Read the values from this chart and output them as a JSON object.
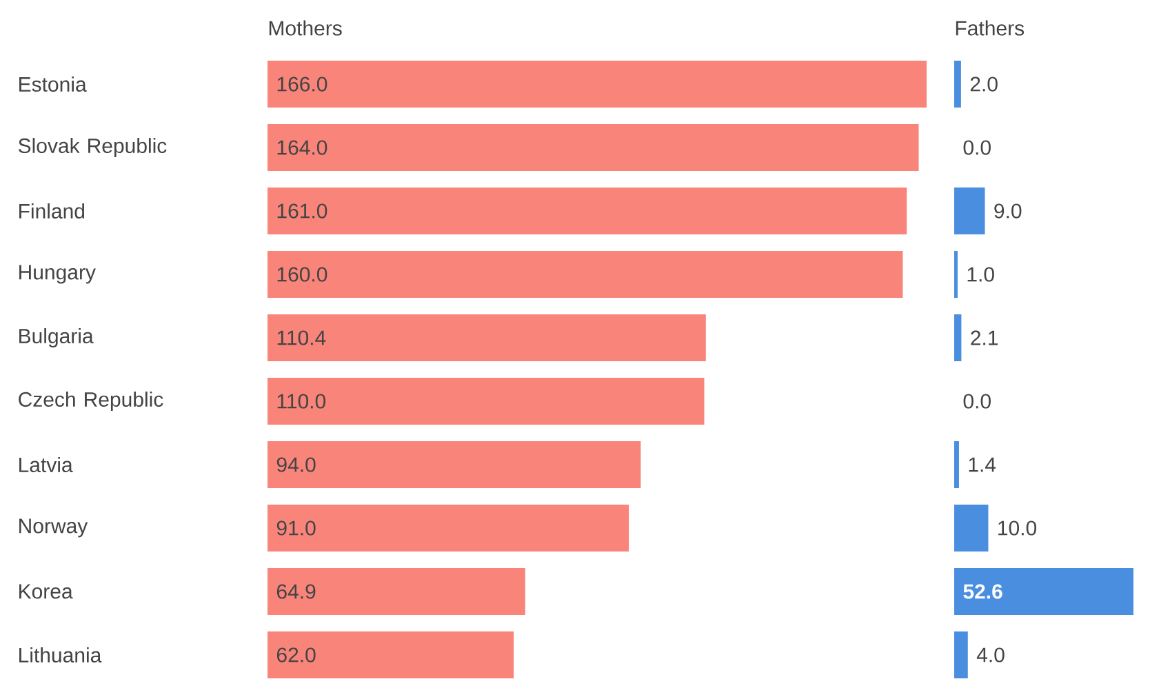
{
  "chart_data": [
    {
      "type": "bar",
      "orientation": "horizontal",
      "title": "Mothers",
      "categories": [
        "Estonia",
        "Slovak Republic",
        "Finland",
        "Hungary",
        "Bulgaria",
        "Czech Republic",
        "Latvia",
        "Norway",
        "Korea",
        "Lithuania"
      ],
      "values": [
        166.0,
        164.0,
        161.0,
        160.0,
        110.4,
        110.0,
        94.0,
        91.0,
        64.9,
        62.0
      ],
      "value_labels": [
        "166.0",
        "164.0",
        "161.0",
        "160.0",
        "110.4",
        "110.0",
        "94.0",
        "91.0",
        "64.9",
        "62.0"
      ],
      "color": "#f8847a",
      "tick_labels": "y"
    },
    {
      "type": "bar",
      "orientation": "horizontal",
      "title": "Fathers",
      "categories": [
        null,
        null,
        null,
        null,
        null,
        null,
        null,
        null,
        null,
        null
      ],
      "values": [
        2.0,
        0.0,
        9.0,
        1.0,
        2.1,
        0.0,
        1.4,
        10.0,
        52.6,
        4.0
      ],
      "value_labels": [
        "2.0",
        "0.0",
        "9.0",
        "1.0",
        "2.1",
        "0.0",
        "1.4",
        "10.0",
        "52.6",
        "4.0"
      ],
      "color": "#4a8ee0",
      "tick_labels": false
    }
  ]
}
